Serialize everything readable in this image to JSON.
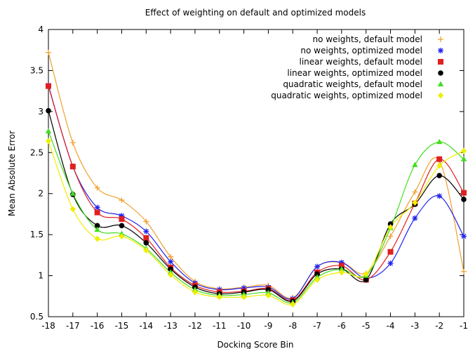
{
  "chart_data": {
    "type": "line",
    "title": "Effect of weighting on default and optimized models",
    "xlabel": "Docking Score Bin",
    "ylabel": "Mean Absolute Error",
    "xlim": [
      -18,
      -1
    ],
    "ylim": [
      0.5,
      4
    ],
    "x_ticks": [
      "-18",
      "-17",
      "-16",
      "-15",
      "-14",
      "-13",
      "-12",
      "-11",
      "-10",
      "-9",
      "-8",
      "-7",
      "-6",
      "-5",
      "-4",
      "-3",
      "-2",
      "-1"
    ],
    "y_ticks": [
      "0.5",
      "1",
      "1.5",
      "2",
      "2.5",
      "3",
      "3.5",
      "4"
    ],
    "grid": false,
    "legend_position": "top-right",
    "x": [
      -18,
      -17,
      -16,
      -15,
      -14,
      -13,
      -12,
      -11,
      -10,
      -9,
      -8,
      -7,
      -6,
      -5,
      -4,
      -3,
      -2,
      -1
    ],
    "series": [
      {
        "name": "no weights, default model",
        "color": "#f0a030",
        "marker": "plus",
        "values": [
          3.72,
          2.62,
          2.07,
          1.92,
          1.66,
          1.23,
          0.93,
          0.84,
          0.86,
          0.88,
          0.73,
          1.11,
          1.16,
          1.03,
          1.48,
          2.02,
          2.4,
          1.05
        ]
      },
      {
        "name": "no weights, optimized model",
        "color": "#2222ee",
        "marker": "star",
        "values": [
          3.32,
          2.33,
          1.83,
          1.73,
          1.54,
          1.17,
          0.91,
          0.83,
          0.85,
          0.86,
          0.72,
          1.11,
          1.16,
          0.97,
          1.15,
          1.7,
          1.97,
          1.48
        ]
      },
      {
        "name": "linear weights, default model",
        "color": "#e02020",
        "marker": "square",
        "values": [
          3.31,
          2.33,
          1.77,
          1.69,
          1.46,
          1.1,
          0.88,
          0.8,
          0.81,
          0.84,
          0.7,
          1.04,
          1.12,
          0.95,
          1.29,
          1.88,
          2.42,
          2.01
        ]
      },
      {
        "name": "linear weights, optimized model",
        "color": "#000000",
        "marker": "circle",
        "values": [
          3.01,
          1.99,
          1.61,
          1.61,
          1.4,
          1.08,
          0.86,
          0.78,
          0.8,
          0.83,
          0.69,
          1.02,
          1.08,
          0.95,
          1.63,
          1.87,
          2.22,
          1.93
        ]
      },
      {
        "name": "quadratic weights, default model",
        "color": "#44dd22",
        "marker": "triangle",
        "values": [
          2.76,
          2.0,
          1.56,
          1.51,
          1.33,
          1.04,
          0.83,
          0.76,
          0.77,
          0.79,
          0.67,
          0.98,
          1.08,
          1.0,
          1.58,
          2.35,
          2.63,
          2.42
        ]
      },
      {
        "name": "quadratic weights, optimized model",
        "color": "#eeee00",
        "marker": "diamond",
        "values": [
          2.64,
          1.81,
          1.45,
          1.48,
          1.31,
          1.01,
          0.8,
          0.74,
          0.74,
          0.76,
          0.65,
          0.95,
          1.04,
          1.02,
          1.59,
          1.89,
          2.34,
          2.52
        ]
      }
    ]
  }
}
